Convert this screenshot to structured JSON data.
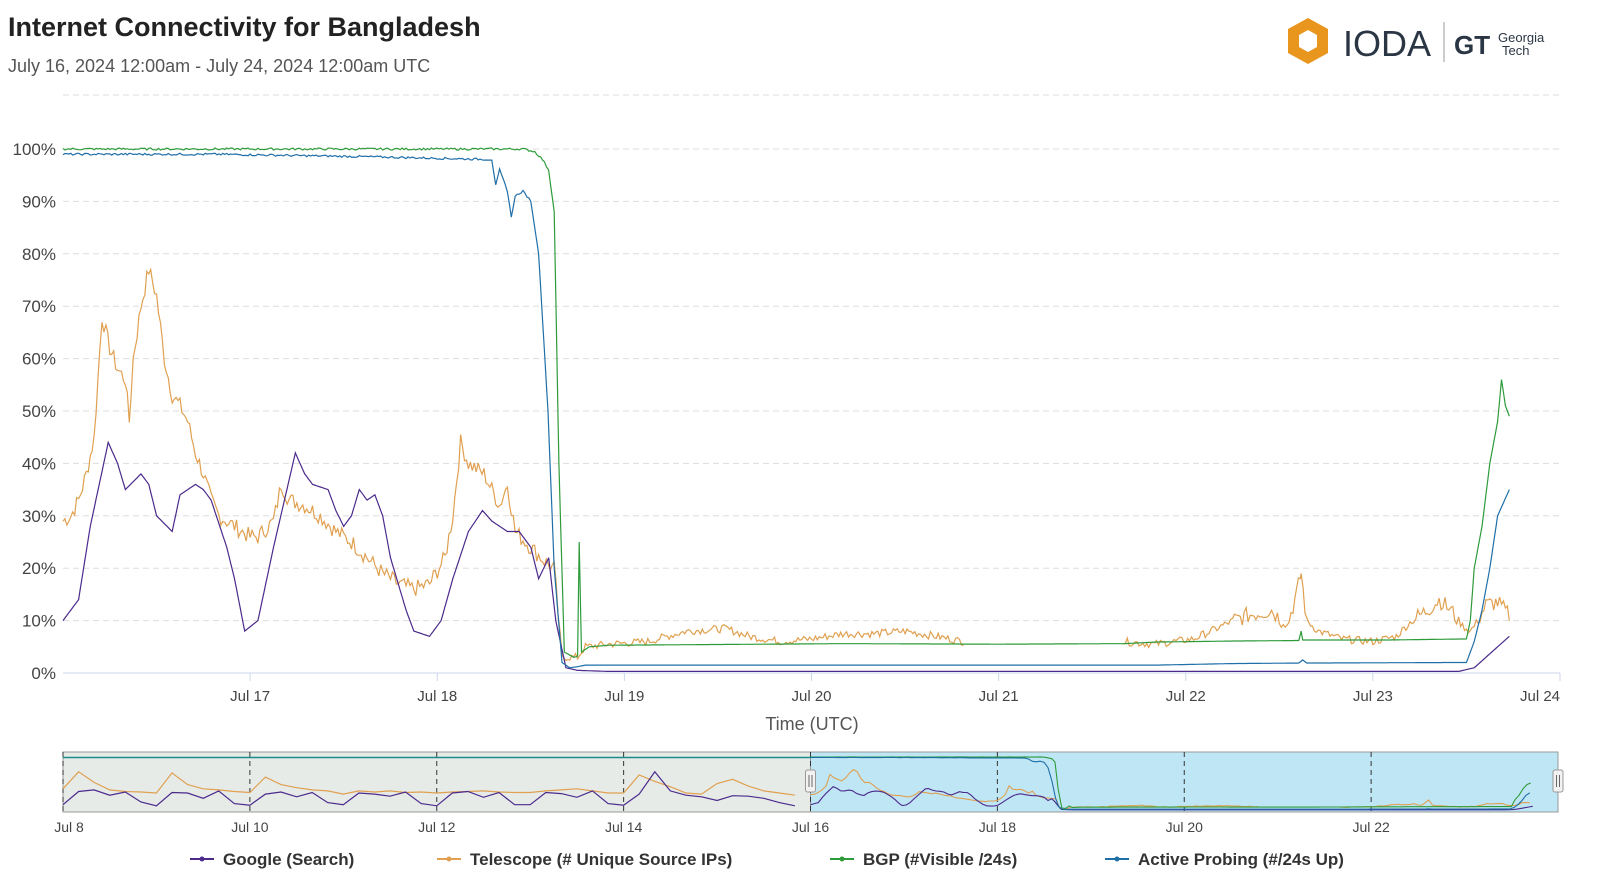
{
  "header": {
    "title": "Internet Connectivity for Bangladesh",
    "subtitle": "July 16, 2024 12:00am - July 24, 2024 12:00am UTC"
  },
  "logo": {
    "ioda": "IODA",
    "gt_mark": "GT",
    "gt_text_1": "Georgia",
    "gt_text_2": "Tech"
  },
  "chart_data": {
    "type": "line",
    "title": "Internet Connectivity for Bangladesh",
    "xlabel": "Time (UTC)",
    "ylabel": "",
    "ylim": [
      0,
      100
    ],
    "yticks": [
      "0%",
      "10%",
      "20%",
      "30%",
      "40%",
      "50%",
      "60%",
      "70%",
      "80%",
      "90%",
      "100%"
    ],
    "xticks": [
      {
        "label": "Jul 17",
        "hour": 24
      },
      {
        "label": "Jul 18",
        "hour": 48
      },
      {
        "label": "Jul 19",
        "hour": 72
      },
      {
        "label": "Jul 20",
        "hour": 96
      },
      {
        "label": "Jul 21",
        "hour": 120
      },
      {
        "label": "Jul 22",
        "hour": 144
      },
      {
        "label": "Jul 23",
        "hour": 168
      },
      {
        "label": "Jul 24",
        "hour": 192
      }
    ],
    "x_unit": "hours since July 16 00:00 UTC",
    "series": [
      {
        "name": "Google (Search)",
        "color": "#4b2a8c",
        "points": [
          [
            0,
            10
          ],
          [
            2,
            14
          ],
          [
            3.5,
            28
          ],
          [
            5.8,
            44
          ],
          [
            7,
            40
          ],
          [
            8,
            35
          ],
          [
            10,
            38
          ],
          [
            11,
            36
          ],
          [
            12,
            30
          ],
          [
            14,
            27
          ],
          [
            15,
            34
          ],
          [
            17,
            36
          ],
          [
            18,
            35
          ],
          [
            19,
            33
          ],
          [
            21,
            24
          ],
          [
            22,
            18
          ],
          [
            23.3,
            8
          ],
          [
            25,
            10
          ],
          [
            27,
            24
          ],
          [
            29.8,
            42
          ],
          [
            31,
            38
          ],
          [
            32,
            36
          ],
          [
            34,
            35
          ],
          [
            35,
            31
          ],
          [
            36,
            28
          ],
          [
            37,
            30
          ],
          [
            38,
            35
          ],
          [
            39,
            33
          ],
          [
            40,
            34
          ],
          [
            41,
            30
          ],
          [
            42,
            22
          ],
          [
            44,
            12
          ],
          [
            45,
            8
          ],
          [
            47,
            7
          ],
          [
            48.5,
            10
          ],
          [
            50,
            18
          ],
          [
            52,
            27
          ],
          [
            53.8,
            31
          ],
          [
            55,
            29
          ],
          [
            57,
            27
          ],
          [
            58.5,
            27
          ],
          [
            60,
            24
          ],
          [
            61,
            18
          ],
          [
            62.3,
            22
          ],
          [
            63.2,
            10
          ],
          [
            64.5,
            1
          ],
          [
            66,
            0.5
          ],
          [
            70,
            0.3
          ],
          [
            179,
            0.3
          ],
          [
            181,
            1
          ],
          [
            182.5,
            3
          ],
          [
            184,
            5
          ],
          [
            185.5,
            7
          ]
        ]
      },
      {
        "name": "Telescope (# Unique Source IPs)",
        "color": "#e0a050",
        "noise": 2.5,
        "segments": [
          [
            [
              0,
              29
            ],
            [
              1,
              30
            ],
            [
              2,
              33
            ],
            [
              3,
              38
            ],
            [
              4,
              45
            ],
            [
              5,
              68
            ],
            [
              6,
              62
            ],
            [
              7,
              58
            ],
            [
              8,
              56
            ],
            [
              8.5,
              48
            ],
            [
              9,
              60
            ],
            [
              10,
              70
            ],
            [
              11,
              77
            ],
            [
              12,
              72
            ],
            [
              13,
              60
            ],
            [
              14,
              53
            ],
            [
              15,
              51
            ],
            [
              16,
              48
            ],
            [
              17,
              42
            ],
            [
              18,
              38
            ],
            [
              19,
              33
            ],
            [
              20,
              30
            ],
            [
              22,
              28
            ],
            [
              24,
              26
            ],
            [
              25,
              26
            ],
            [
              27,
              29
            ],
            [
              28,
              36
            ],
            [
              29,
              33
            ],
            [
              31,
              32
            ],
            [
              33,
              30
            ],
            [
              35,
              27
            ],
            [
              37,
              25
            ],
            [
              39,
              22
            ],
            [
              41,
              19
            ],
            [
              43,
              17
            ],
            [
              45,
              16
            ],
            [
              47,
              17
            ],
            [
              49,
              22
            ],
            [
              50,
              30
            ],
            [
              51,
              44
            ],
            [
              52,
              40
            ],
            [
              54,
              38
            ],
            [
              56,
              32
            ],
            [
              57,
              36
            ],
            [
              58,
              27
            ],
            [
              60,
              24
            ],
            [
              62,
              21
            ],
            [
              63,
              20
            ],
            [
              64,
              3
            ],
            [
              66,
              3
            ],
            [
              67,
              5
            ],
            [
              70,
              5.5
            ],
            [
              75,
              6
            ],
            [
              80,
              8
            ],
            [
              85,
              8.5
            ],
            [
              88,
              7
            ],
            [
              92,
              6
            ],
            [
              96,
              6.5
            ],
            [
              100,
              7.5
            ],
            [
              104,
              7.5
            ],
            [
              108,
              8
            ],
            [
              112,
              7
            ],
            [
              115.5,
              6
            ]
          ],
          [
            [
              136,
              6
            ],
            [
              140,
              5.5
            ],
            [
              145,
              6.5
            ],
            [
              148,
              8.5
            ],
            [
              150,
              10
            ],
            [
              152,
              11
            ],
            [
              155,
              12
            ],
            [
              157,
              9
            ],
            [
              158.2,
              15
            ],
            [
              158.8,
              19
            ],
            [
              159.5,
              10
            ],
            [
              161,
              8
            ],
            [
              164,
              6.5
            ],
            [
              168,
              6
            ],
            [
              171,
              7
            ],
            [
              173,
              10
            ],
            [
              175,
              12
            ],
            [
              176.5,
              14
            ],
            [
              178,
              12
            ],
            [
              179.5,
              9
            ],
            [
              180.5,
              8
            ],
            [
              181.5,
              10
            ],
            [
              182.5,
              13
            ],
            [
              184,
              13.5
            ],
            [
              185.5,
              11
            ]
          ]
        ]
      },
      {
        "name": "BGP (#Visible /24s)",
        "color": "#2e9b3a",
        "points": [
          [
            0,
            100
          ],
          [
            59,
            100
          ],
          [
            60.5,
            99.5
          ],
          [
            61.5,
            98
          ],
          [
            62.3,
            96
          ],
          [
            63,
            88
          ],
          [
            63.6,
            40
          ],
          [
            64.3,
            4
          ],
          [
            65.5,
            3
          ],
          [
            66,
            3.2
          ],
          [
            66.2,
            25
          ],
          [
            66.5,
            4
          ],
          [
            67.5,
            5
          ],
          [
            70,
            5.3
          ],
          [
            100,
            5.6
          ],
          [
            120,
            5.5
          ],
          [
            136,
            5.6
          ],
          [
            140,
            5.9
          ],
          [
            150,
            6.1
          ],
          [
            158.5,
            6.2
          ],
          [
            158.8,
            8
          ],
          [
            159,
            6.3
          ],
          [
            170,
            6.3
          ],
          [
            180,
            6.5
          ],
          [
            180.5,
            10
          ],
          [
            181,
            20
          ],
          [
            182,
            28
          ],
          [
            183,
            40
          ],
          [
            184,
            48
          ],
          [
            184.5,
            56
          ],
          [
            185,
            51
          ],
          [
            185.5,
            49
          ]
        ]
      },
      {
        "name": "Active Probing (#/24s Up)",
        "color": "#1f6fa8",
        "points": [
          [
            0,
            99
          ],
          [
            20,
            99
          ],
          [
            40,
            98.5
          ],
          [
            55,
            98
          ],
          [
            55.5,
            93
          ],
          [
            56,
            96
          ],
          [
            57,
            92
          ],
          [
            57.5,
            87
          ],
          [
            58,
            91
          ],
          [
            59,
            92
          ],
          [
            60,
            90
          ],
          [
            61,
            80
          ],
          [
            62.2,
            50
          ],
          [
            63,
            20
          ],
          [
            64,
            2
          ],
          [
            65,
            1
          ],
          [
            66,
            1.2
          ],
          [
            67,
            1.5
          ],
          [
            80,
            1.5
          ],
          [
            140,
            1.5
          ],
          [
            150,
            1.8
          ],
          [
            158.5,
            1.9
          ],
          [
            159,
            2.5
          ],
          [
            159.5,
            1.9
          ],
          [
            178,
            2
          ],
          [
            180,
            2
          ],
          [
            181,
            6
          ],
          [
            182,
            12
          ],
          [
            183,
            20
          ],
          [
            184,
            30
          ],
          [
            185.5,
            35
          ]
        ]
      }
    ],
    "legend": {
      "placement": "bottom"
    },
    "navigator": {
      "xticks": [
        "Jul 8",
        "Jul 10",
        "Jul 12",
        "Jul 14",
        "Jul 16",
        "Jul 18",
        "Jul 20",
        "Jul 22"
      ],
      "selection": {
        "from": "Jul 16",
        "to": "Jul 24"
      },
      "history_google": [
        10,
        35,
        38,
        28,
        34,
        15,
        8,
        33,
        32,
        22,
        36,
        12,
        9,
        30,
        34,
        25,
        33,
        14,
        10,
        32,
        30,
        26,
        34,
        12,
        8,
        32,
        35,
        24,
        33,
        10,
        10,
        33,
        31,
        24,
        36,
        12,
        9,
        30,
        72,
        36,
        28,
        25,
        18,
        27,
        26,
        22,
        14,
        8
      ],
      "history_telescope": [
        40,
        72,
        52,
        38,
        35,
        34,
        32,
        70,
        48,
        40,
        38,
        35,
        33,
        62,
        48,
        42,
        38,
        36,
        30,
        36,
        34,
        36,
        33,
        34,
        32,
        34,
        35,
        36,
        34,
        33,
        33,
        36,
        38,
        40,
        36,
        32,
        32,
        66,
        54,
        44,
        32,
        30,
        50,
        58,
        45,
        36,
        32,
        28
      ]
    }
  }
}
